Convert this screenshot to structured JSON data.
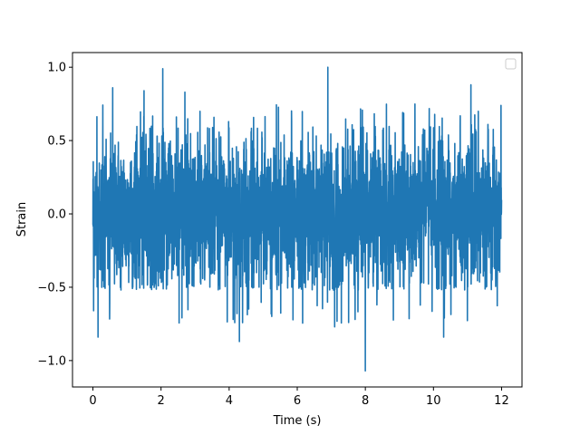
{
  "chart_data": {
    "type": "line",
    "title": "",
    "xlabel": "Time (s)",
    "ylabel": "Strain",
    "xlim": [
      -0.6,
      12.6
    ],
    "ylim": [
      -1.18,
      1.1
    ],
    "x_ticks": [
      0,
      2,
      4,
      6,
      8,
      10,
      12
    ],
    "x_tick_labels": [
      "0",
      "2",
      "4",
      "6",
      "8",
      "10",
      "12"
    ],
    "y_ticks": [
      -1.0,
      -0.5,
      0.0,
      0.5,
      1.0
    ],
    "y_tick_labels": [
      "−1.0",
      "−0.5",
      "0.0",
      "0.5",
      "1.0"
    ],
    "grid": false,
    "legend": {
      "placement": "upper right",
      "entries": []
    },
    "series": [
      {
        "color": "#1f77b4",
        "x_range": [
          0,
          12
        ],
        "description_extrema": [
          {
            "x": 0.02,
            "y": -0.66
          },
          {
            "x": 0.15,
            "y": -0.84
          },
          {
            "x": 0.58,
            "y": 0.86
          },
          {
            "x": 1.5,
            "y": 0.84
          },
          {
            "x": 2.05,
            "y": 0.99
          },
          {
            "x": 2.45,
            "y": -0.82
          },
          {
            "x": 2.7,
            "y": 0.83
          },
          {
            "x": 4.3,
            "y": -0.87
          },
          {
            "x": 6.9,
            "y": 1.0
          },
          {
            "x": 7.1,
            "y": -0.77
          },
          {
            "x": 8.0,
            "y": -1.07
          },
          {
            "x": 10.3,
            "y": -0.84
          },
          {
            "x": 11.1,
            "y": 0.88
          }
        ],
        "typical_envelope": [
          -0.45,
          0.58
        ]
      }
    ]
  }
}
